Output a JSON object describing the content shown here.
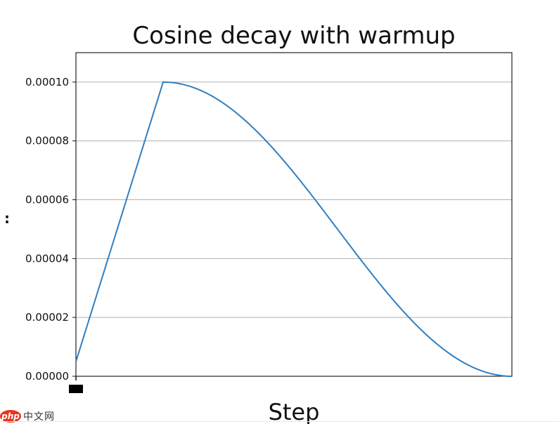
{
  "chart_data": {
    "type": "line",
    "title": "Cosine decay with warmup",
    "xlabel": "Step",
    "ylabel": ":",
    "y_ticks": [
      "0.00000",
      "0.00002",
      "0.00004",
      "0.00006",
      "0.00008",
      "0.00010"
    ],
    "ylim": [
      0,
      0.00011
    ],
    "grid": "horizontal",
    "legend": "none",
    "series": [
      {
        "color": "#2f7fc1",
        "warmup_fraction": 0.2,
        "warmup_start": 5e-06,
        "peak": 0.0001,
        "final": 0.0
      }
    ]
  },
  "watermark": {
    "logo": "php",
    "text": "中文网"
  }
}
